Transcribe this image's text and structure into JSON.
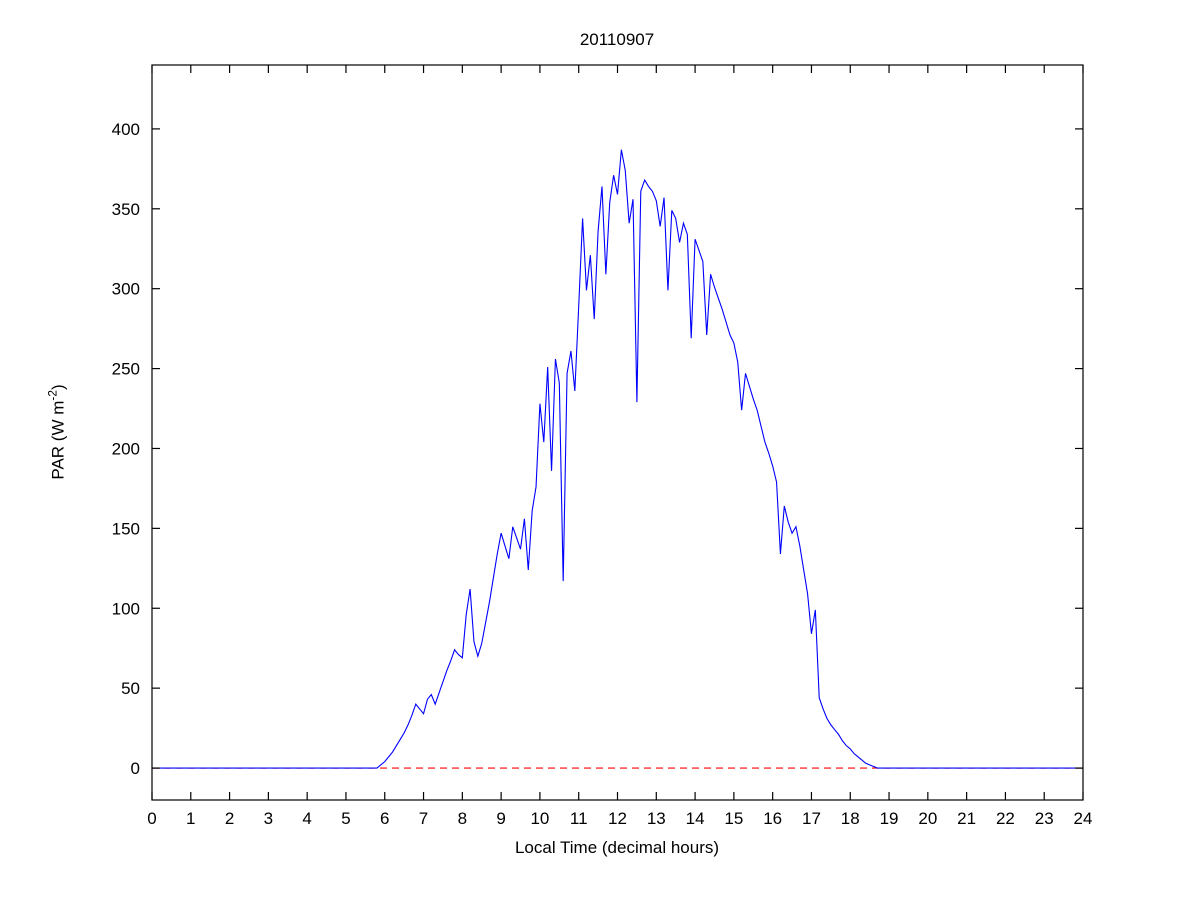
{
  "chart_data": {
    "type": "line",
    "title": "20110907",
    "xlabel": "Local Time (decimal hours)",
    "ylabel": "PAR (W m^-2)",
    "ylabel_parts": {
      "pre": "PAR (W m",
      "sup": "-2",
      "post": ")"
    },
    "xlim": [
      0,
      24
    ],
    "ylim": [
      -20,
      440
    ],
    "xticks": [
      0,
      1,
      2,
      3,
      4,
      5,
      6,
      7,
      8,
      9,
      10,
      11,
      12,
      13,
      14,
      15,
      16,
      17,
      18,
      19,
      20,
      21,
      22,
      23,
      24
    ],
    "yticks": [
      0,
      50,
      100,
      150,
      200,
      250,
      300,
      350,
      400
    ],
    "grid": false,
    "legend": null,
    "series": [
      {
        "name": "PAR",
        "color": "#0000ff",
        "x": [
          0,
          1,
          2,
          3,
          4,
          5,
          5.5,
          5.8,
          5.9,
          6,
          6.1,
          6.2,
          6.3,
          6.4,
          6.5,
          6.6,
          6.7,
          6.8,
          6.9,
          7,
          7.1,
          7.2,
          7.3,
          7.4,
          7.5,
          7.6,
          7.7,
          7.8,
          7.9,
          8,
          8.1,
          8.2,
          8.3,
          8.4,
          8.5,
          8.6,
          8.7,
          8.8,
          8.9,
          9,
          9.1,
          9.2,
          9.3,
          9.4,
          9.5,
          9.6,
          9.7,
          9.8,
          9.9,
          10,
          10.1,
          10.2,
          10.3,
          10.4,
          10.5,
          10.6,
          10.7,
          10.8,
          10.9,
          11,
          11.1,
          11.2,
          11.3,
          11.4,
          11.5,
          11.6,
          11.7,
          11.8,
          11.9,
          12,
          12.1,
          12.2,
          12.3,
          12.4,
          12.5,
          12.6,
          12.7,
          12.8,
          12.9,
          13,
          13.1,
          13.2,
          13.3,
          13.4,
          13.5,
          13.6,
          13.7,
          13.8,
          13.9,
          14,
          14.1,
          14.2,
          14.3,
          14.4,
          14.5,
          14.6,
          14.7,
          14.8,
          14.9,
          15,
          15.1,
          15.2,
          15.3,
          15.4,
          15.5,
          15.6,
          15.7,
          15.8,
          15.9,
          16,
          16.1,
          16.2,
          16.3,
          16.4,
          16.5,
          16.6,
          16.7,
          16.8,
          16.9,
          17,
          17.1,
          17.2,
          17.3,
          17.4,
          17.5,
          17.6,
          17.7,
          17.8,
          17.9,
          18,
          18.1,
          18.2,
          18.3,
          18.4,
          18.5,
          18.6,
          18.7,
          19,
          20,
          21,
          22,
          23,
          24
        ],
        "y": [
          0,
          0,
          0,
          0,
          0,
          0,
          0,
          0,
          2,
          4,
          7,
          10,
          14,
          18,
          22,
          27,
          33,
          40,
          37,
          34,
          43,
          46,
          40,
          47,
          54,
          61,
          67,
          74,
          71,
          69,
          96,
          112,
          79,
          70,
          78,
          91,
          104,
          119,
          134,
          147,
          139,
          131,
          151,
          144,
          137,
          156,
          124,
          161,
          176,
          228,
          204,
          251,
          186,
          256,
          241,
          117,
          247,
          261,
          236,
          289,
          344,
          299,
          321,
          281,
          336,
          364,
          309,
          354,
          371,
          359,
          387,
          374,
          341,
          356,
          229,
          361,
          368,
          364,
          361,
          355,
          339,
          357,
          299,
          349,
          344,
          329,
          341,
          334,
          269,
          331,
          324,
          317,
          271,
          309,
          301,
          294,
          287,
          279,
          271,
          266,
          254,
          224,
          247,
          239,
          231,
          224,
          214,
          204,
          197,
          189,
          179,
          134,
          164,
          154,
          147,
          151,
          139,
          124,
          109,
          84,
          99,
          44,
          37,
          31,
          27,
          24,
          21,
          17,
          14,
          12,
          9,
          7,
          5,
          3,
          2,
          1,
          0,
          0,
          0,
          0,
          0,
          0,
          0
        ]
      }
    ],
    "annotations": [
      {
        "type": "hline",
        "y": 0,
        "color": "#ff0000",
        "style": "dashed"
      }
    ]
  }
}
